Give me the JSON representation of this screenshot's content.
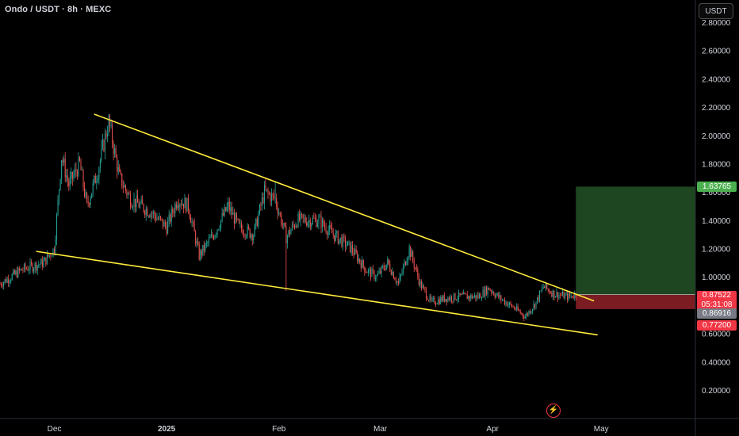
{
  "header": {
    "title": "Ondo / USDT · 8h · MEXC",
    "currency_button": "USDT",
    "indicator_icon": "lightning-bolt-icon"
  },
  "chart_data": {
    "type": "candlestick",
    "symbol": "Ondo / USDT",
    "interval": "8h",
    "exchange": "MEXC",
    "ylim": [
      0.1,
      2.85
    ],
    "y_ticks": [
      "2.80000",
      "2.60000",
      "2.40000",
      "2.20000",
      "2.00000",
      "1.80000",
      "1.60000",
      "1.40000",
      "1.20000",
      "1.00000",
      "0.80000",
      "0.60000",
      "0.40000",
      "0.20000"
    ],
    "x_ticks": [
      "Dec",
      "2025",
      "Feb",
      "Mar",
      "Apr",
      "May"
    ],
    "x_tick_dates": [
      "2024-12-01",
      "2025-01-01",
      "2025-02-01",
      "2025-03-01",
      "2025-04-01",
      "2025-05-01"
    ],
    "x_range": [
      "2024-11-16",
      "2025-05-27"
    ],
    "price_path": [
      [
        "2024-11-16",
        0.95
      ],
      [
        "2024-11-22",
        1.05
      ],
      [
        "2024-11-28",
        1.1
      ],
      [
        "2024-12-01",
        1.2
      ],
      [
        "2024-12-03",
        1.85
      ],
      [
        "2024-12-05",
        1.65
      ],
      [
        "2024-12-08",
        1.8
      ],
      [
        "2024-12-10",
        1.5
      ],
      [
        "2024-12-13",
        1.75
      ],
      [
        "2024-12-16",
        2.1
      ],
      [
        "2024-12-19",
        1.7
      ],
      [
        "2024-12-22",
        1.55
      ],
      [
        "2024-12-28",
        1.45
      ],
      [
        "2025-01-01",
        1.35
      ],
      [
        "2025-01-04",
        1.55
      ],
      [
        "2025-01-07",
        1.5
      ],
      [
        "2025-01-10",
        1.15
      ],
      [
        "2025-01-14",
        1.3
      ],
      [
        "2025-01-18",
        1.5
      ],
      [
        "2025-01-21",
        1.35
      ],
      [
        "2025-01-25",
        1.3
      ],
      [
        "2025-01-28",
        1.6
      ],
      [
        "2025-01-31",
        1.55
      ],
      [
        "2025-02-03",
        1.28
      ],
      [
        "2025-02-06",
        1.4
      ],
      [
        "2025-02-12",
        1.4
      ],
      [
        "2025-02-16",
        1.3
      ],
      [
        "2025-02-21",
        1.2
      ],
      [
        "2025-02-25",
        1.05
      ],
      [
        "2025-02-28",
        1.0
      ],
      [
        "2025-03-03",
        1.1
      ],
      [
        "2025-03-06",
        0.95
      ],
      [
        "2025-03-09",
        1.2
      ],
      [
        "2025-03-12",
        0.95
      ],
      [
        "2025-03-15",
        0.82
      ],
      [
        "2025-03-19",
        0.85
      ],
      [
        "2025-03-23",
        0.86
      ],
      [
        "2025-03-28",
        0.86
      ],
      [
        "2025-03-31",
        0.92
      ],
      [
        "2025-04-03",
        0.85
      ],
      [
        "2025-04-07",
        0.78
      ],
      [
        "2025-04-10",
        0.72
      ],
      [
        "2025-04-13",
        0.82
      ],
      [
        "2025-04-15",
        0.93
      ],
      [
        "2025-04-18",
        0.88
      ],
      [
        "2025-04-22",
        0.86
      ],
      [
        "2025-04-24",
        0.875
      ]
    ],
    "wicks": [
      {
        "date": "2025-02-03",
        "low": 0.9
      },
      {
        "date": "2024-12-16",
        "high": 2.15
      },
      {
        "date": "2025-01-31",
        "high": 1.67
      }
    ],
    "trendlines": [
      {
        "name": "upper",
        "color": "#ffeb3b",
        "from": [
          "2024-12-12",
          2.15
        ],
        "to": [
          "2025-04-29",
          0.83
        ]
      },
      {
        "name": "lower",
        "color": "#ffeb3b",
        "from": [
          "2024-11-26",
          1.18
        ],
        "to": [
          "2025-04-30",
          0.59
        ]
      }
    ],
    "position": {
      "type": "long",
      "start": "2025-04-24",
      "end": "2025-05-27",
      "entry": 0.87522,
      "target": 1.63765,
      "stop": 0.772,
      "profit_color": "#1e4620",
      "loss_color": "#7a1c22"
    },
    "price_labels": {
      "target": "1.63765",
      "current": "0.87522",
      "countdown": "05:31:08",
      "marker": "0.86916",
      "stop": "0.77200"
    },
    "colors": {
      "background": "#000000",
      "up": "#26a69a",
      "down": "#ef5350",
      "trendline": "#ffeb3b",
      "axis_text": "#d1d4dc"
    }
  }
}
